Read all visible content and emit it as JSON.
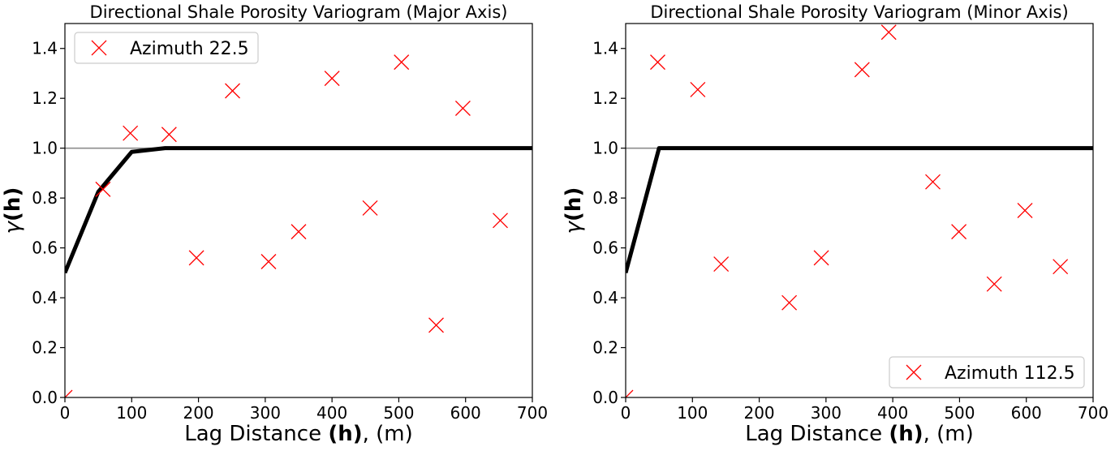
{
  "chart_data": [
    {
      "type": "scatter",
      "title": "Directional Shale Porosity Variogram (Major Axis)",
      "xlabel": {
        "prefix": "Lag Distance ",
        "bold": "(h)",
        "suffix": ", (m)"
      },
      "ylabel": {
        "symbol": "γ",
        "bold": "(h)"
      },
      "xlim": [
        0,
        700
      ],
      "ylim": [
        0,
        1.5
      ],
      "xticks": [
        0,
        100,
        200,
        300,
        400,
        500,
        600,
        700
      ],
      "yticks": [
        0.0,
        0.2,
        0.4,
        0.6,
        0.8,
        1.0,
        1.2,
        1.4
      ],
      "xtick_labels": [
        "0",
        "100",
        "200",
        "300",
        "400",
        "500",
        "600",
        "700"
      ],
      "ytick_labels": [
        "0.0",
        "0.2",
        "0.4",
        "0.6",
        "0.8",
        "1.0",
        "1.2",
        "1.4"
      ],
      "sill": 1.0,
      "legend_position": "upper-left",
      "series": [
        {
          "name": "Azimuth 22.5",
          "marker": "x",
          "color": "#ff0000",
          "x": [
            0,
            57,
            98,
            156,
            197,
            251,
            305,
            350,
            400,
            457,
            504,
            556,
            596,
            652
          ],
          "y": [
            0.0,
            0.835,
            1.06,
            1.055,
            0.56,
            1.23,
            0.545,
            0.665,
            1.28,
            0.76,
            1.345,
            0.29,
            1.16,
            0.71
          ]
        }
      ],
      "model": {
        "color": "#000000",
        "x": [
          0,
          50,
          100,
          150,
          200,
          700
        ],
        "y": [
          0.5,
          0.825,
          0.985,
          1.0,
          1.0,
          1.0
        ]
      }
    },
    {
      "type": "scatter",
      "title": "Directional Shale Porosity Variogram (Minor Axis)",
      "xlabel": {
        "prefix": "Lag Distance ",
        "bold": "(h)",
        "suffix": ", (m)"
      },
      "ylabel": {
        "symbol": "γ",
        "bold": "(h)"
      },
      "xlim": [
        0,
        700
      ],
      "ylim": [
        0,
        1.5
      ],
      "xticks": [
        0,
        100,
        200,
        300,
        400,
        500,
        600,
        700
      ],
      "yticks": [
        0.0,
        0.2,
        0.4,
        0.6,
        0.8,
        1.0,
        1.2,
        1.4
      ],
      "xtick_labels": [
        "0",
        "100",
        "200",
        "300",
        "400",
        "500",
        "600",
        "700"
      ],
      "ytick_labels": [
        "0.0",
        "0.2",
        "0.4",
        "0.6",
        "0.8",
        "1.0",
        "1.2",
        "1.4"
      ],
      "sill": 1.0,
      "legend_position": "lower-right",
      "series": [
        {
          "name": "Azimuth 112.5",
          "marker": "x",
          "color": "#ff0000",
          "x": [
            0,
            48,
            108,
            143,
            245,
            293,
            354,
            394,
            460,
            499,
            552,
            598,
            651
          ],
          "y": [
            0.0,
            1.345,
            1.235,
            0.535,
            0.38,
            0.56,
            1.315,
            1.465,
            0.865,
            0.665,
            0.455,
            0.75,
            0.525
          ]
        }
      ],
      "model": {
        "color": "#000000",
        "x": [
          0,
          50,
          700
        ],
        "y": [
          0.5,
          1.0,
          1.0
        ]
      }
    }
  ]
}
